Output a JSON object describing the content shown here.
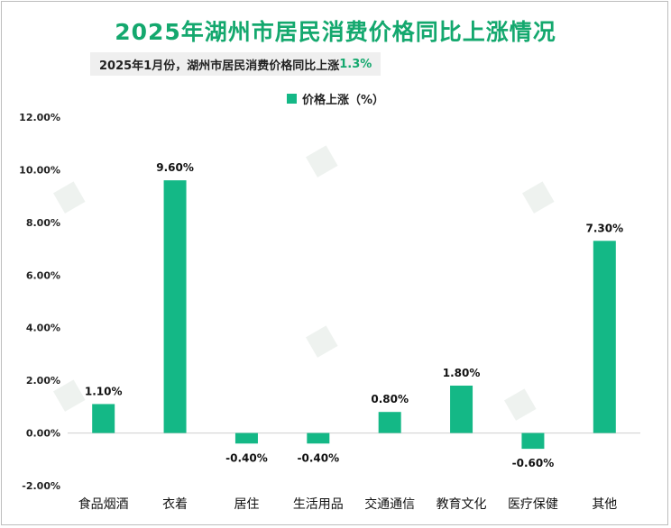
{
  "title": "2025年湖州市居民消费价格同比上涨情况",
  "subtitle": {
    "text": "2025年1月份，湖州市居民消费价格同比上涨",
    "value": "1.3%"
  },
  "colors": {
    "accent": "#14a86e",
    "bar": "#14b886"
  },
  "chart_data": {
    "type": "bar",
    "categories": [
      "食品烟酒",
      "衣着",
      "居住",
      "生活用品",
      "交通通信",
      "教育文化",
      "医疗保健",
      "其他"
    ],
    "series": [
      {
        "name": "价格上涨（%）",
        "values": [
          1.1,
          9.6,
          -0.4,
          -0.4,
          0.8,
          1.8,
          -0.6,
          7.3
        ]
      }
    ],
    "data_labels": [
      "1.10%",
      "9.60%",
      "-0.40%",
      "-0.40%",
      "0.80%",
      "1.80%",
      "-0.60%",
      "7.30%"
    ],
    "ylim": [
      -2,
      12
    ],
    "yticks": [
      -2,
      0,
      2,
      4,
      6,
      8,
      10,
      12
    ],
    "ytick_labels": [
      "-2.00%",
      "0.00%",
      "2.00%",
      "4.00%",
      "6.00%",
      "8.00%",
      "10.00%",
      "12.00%"
    ],
    "legend": "top-center",
    "grid": false
  }
}
